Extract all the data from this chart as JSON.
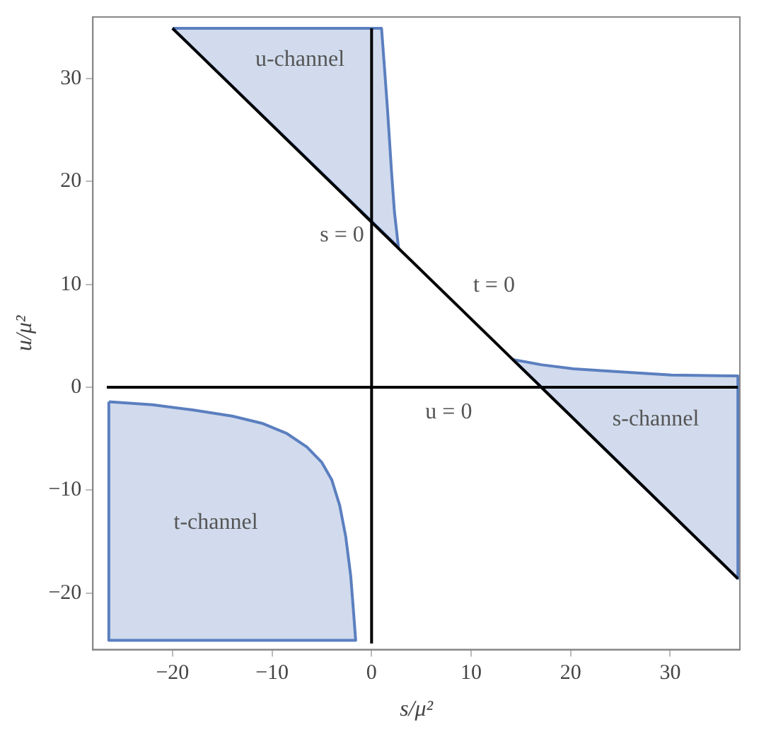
{
  "chart_data": {
    "type": "area",
    "xlabel": "s/μ²",
    "ylabel": "u/μ²",
    "xlim": [
      -28,
      37
    ],
    "ylim": [
      -25.5,
      36
    ],
    "xticks": [
      {
        "value": -20,
        "label": "−20"
      },
      {
        "value": -10,
        "label": "−10"
      },
      0,
      10,
      20,
      30
    ],
    "yticks": [
      {
        "value": -20,
        "label": "−20"
      },
      {
        "value": -10,
        "label": "−10"
      },
      0,
      10,
      20,
      30
    ],
    "grid": false,
    "legend": false,
    "marker": "none",
    "line_style": "solid",
    "series": [
      {
        "name": "u-channel",
        "color": "#5b7fbf",
        "x": [
          -20,
          1.0,
          1.3,
          1.6,
          2.0,
          2.3,
          2.7,
          -20
        ],
        "values": [
          34.9,
          34.9,
          31,
          27,
          21,
          17,
          13.6,
          34.9
        ]
      },
      {
        "name": "s-channel",
        "color": "#5b7fbf",
        "x": [
          14.2,
          17,
          20.3,
          25,
          30.1,
          36.8,
          36.8,
          14.2
        ],
        "values": [
          2.7,
          2.2,
          1.8,
          1.5,
          1.2,
          1.1,
          -18.6,
          2.7
        ]
      },
      {
        "name": "t-channel",
        "color": "#5b7fbf",
        "x": [
          -26.4,
          -22,
          -18,
          -14,
          -11,
          -8.5,
          -6.5,
          -5,
          -4,
          -3.2,
          -2.6,
          -2.1,
          -1.8,
          -1.6,
          -26.4,
          -26.4
        ],
        "values": [
          -1.4,
          -1.7,
          -2.2,
          -2.8,
          -3.5,
          -4.5,
          -5.8,
          -7.3,
          -9,
          -11.5,
          -14.5,
          -18.3,
          -22,
          -24.6,
          -24.6,
          -1.4
        ]
      },
      {
        "name": "s = 0",
        "type": "line",
        "color": "#000000",
        "x": [
          0,
          0
        ],
        "values": [
          -24.9,
          34.9
        ]
      },
      {
        "name": "u = 0",
        "type": "line",
        "color": "#000000",
        "x": [
          -26.6,
          36.8
        ],
        "values": [
          0,
          0
        ]
      },
      {
        "name": "t = 0",
        "type": "line",
        "color": "#000000",
        "x": [
          -20,
          36.8
        ],
        "values": [
          34.9,
          -18.6
        ]
      }
    ]
  }
}
